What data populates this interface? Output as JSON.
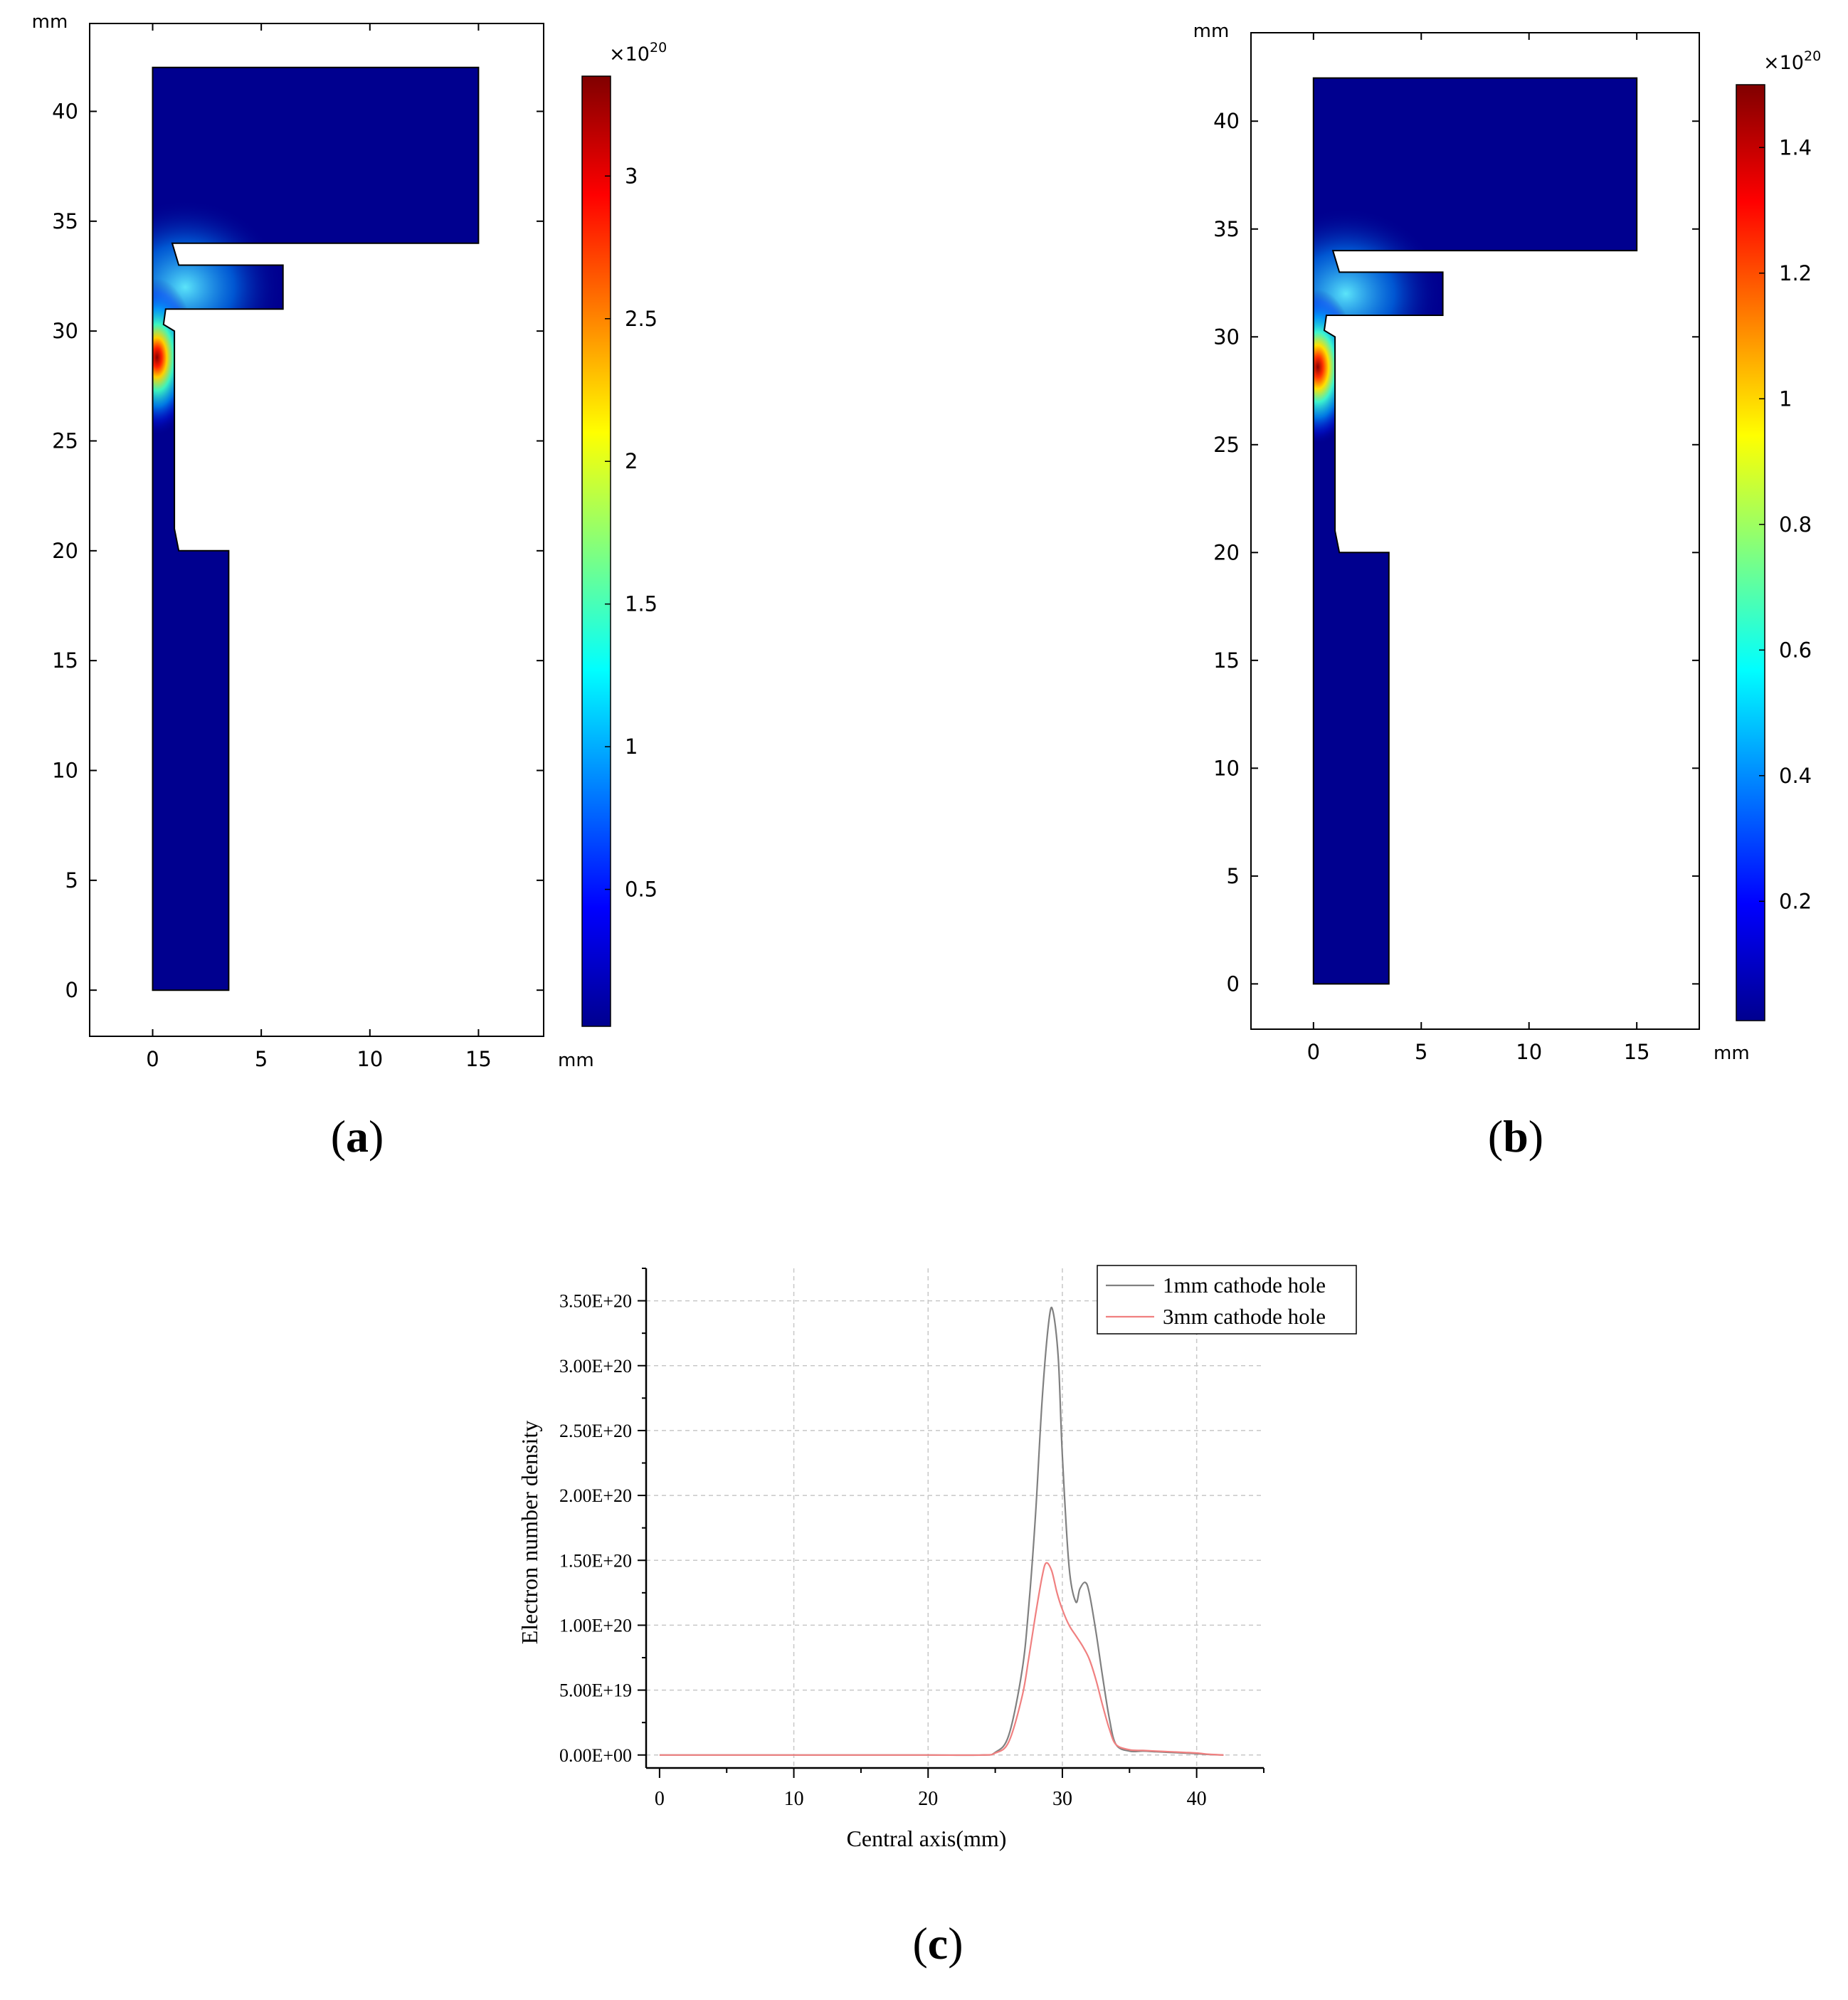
{
  "figure": {
    "panel_labels": [
      "(a)",
      "(b)",
      "(c)"
    ]
  },
  "chart_data": [
    {
      "type": "heatmap",
      "panel": "(a)",
      "x_unit": "mm",
      "y_unit": "mm",
      "xlim": [
        -2.9,
        18
      ],
      "ylim": [
        -2.1,
        44
      ],
      "x_ticks": [
        0,
        5,
        10,
        15
      ],
      "y_ticks": [
        0,
        5,
        10,
        15,
        20,
        25,
        30,
        35,
        40
      ],
      "colorbar": {
        "exponent_label": "×10",
        "exponent": "20",
        "range": [
          0.02,
          3.35
        ],
        "ticks": [
          0.5,
          1,
          1.5,
          2,
          2.5,
          3
        ],
        "tick_labels": [
          "0.5",
          "1",
          "1.5",
          "2",
          "2.5",
          "3"
        ],
        "colormap": "jet"
      },
      "hotspot": {
        "x": 0.2,
        "y": 28.8,
        "peak": 3.4
      }
    },
    {
      "type": "heatmap",
      "panel": "(b)",
      "x_unit": "mm",
      "y_unit": "mm",
      "xlim": [
        -2.9,
        17.9
      ],
      "ylim": [
        -2.1,
        44.1
      ],
      "x_ticks": [
        0,
        5,
        10,
        15
      ],
      "y_ticks": [
        0,
        5,
        10,
        15,
        20,
        25,
        30,
        35,
        40
      ],
      "colorbar": {
        "exponent_label": "×10",
        "exponent": "20",
        "range": [
          0.01,
          1.5
        ],
        "ticks": [
          0.2,
          0.4,
          0.6,
          0.8,
          1,
          1.2,
          1.4
        ],
        "tick_labels": [
          "0.2",
          "0.4",
          "0.6",
          "0.8",
          "1",
          "1.2",
          "1.4"
        ],
        "colormap": "jet"
      },
      "hotspot": {
        "x": 0.2,
        "y": 28.6,
        "peak": 1.5
      }
    },
    {
      "type": "line",
      "panel": "(c)",
      "xlabel": "Central axis(mm)",
      "ylabel": "Electron number density",
      "xlim": [
        -1,
        45
      ],
      "ylim": [
        -1e+19,
        3.75e+20
      ],
      "x_ticks": [
        0,
        10,
        20,
        30,
        40
      ],
      "y_ticks": [
        0,
        5e+19,
        1e+20,
        1.5e+20,
        2e+20,
        2.5e+20,
        3e+20,
        3.5e+20
      ],
      "y_tick_labels": [
        "0.00E+00",
        "5.00E+19",
        "1.00E+20",
        "1.50E+20",
        "2.00E+20",
        "2.50E+20",
        "3.00E+20",
        "3.50E+20"
      ],
      "grid": true,
      "legend_position": "top-right",
      "series": [
        {
          "name": "1mm cathode hole",
          "color": "#808080",
          "x": [
            0,
            10,
            20,
            24,
            25,
            26,
            27,
            27.5,
            28,
            28.5,
            29,
            29.3,
            29.7,
            30,
            30.5,
            31,
            31.3,
            31.7,
            32,
            32.5,
            33,
            33.5,
            34,
            35,
            36,
            37,
            38,
            39,
            40,
            41,
            42
          ],
          "y": [
            0,
            0,
            0,
            0,
            2e+18,
            1.5e+19,
            6.5e+19,
            1.15e+20,
            1.85e+20,
            2.75e+20,
            3.35e+20,
            3.42e+20,
            3.05e+20,
            2.3e+20,
            1.45e+20,
            1.18e+20,
            1.28e+20,
            1.33e+20,
            1.25e+20,
            9.5e+19,
            6e+19,
            2.8e+19,
            8e+18,
            3e+18,
            3e+18,
            2.5e+18,
            2e+18,
            1.5e+18,
            1e+18,
            3e+17,
            0
          ]
        },
        {
          "name": "3mm cathode hole",
          "color": "#f08080",
          "x": [
            0,
            10,
            20,
            24,
            25,
            26,
            27,
            27.5,
            28,
            28.5,
            28.8,
            29.2,
            29.6,
            30,
            30.5,
            31,
            31.5,
            32,
            32.5,
            33,
            33.5,
            34,
            35,
            36,
            37,
            38,
            39,
            40,
            41,
            42
          ],
          "y": [
            0,
            0,
            0,
            0,
            1.5e+18,
            1e+19,
            4.5e+19,
            7.5e+19,
            1.08e+20,
            1.38e+20,
            1.48e+20,
            1.42e+20,
            1.25e+20,
            1.12e+20,
            1e+20,
            9.2e+19,
            8.4e+19,
            7.4e+19,
            5.8e+19,
            3.8e+19,
            2e+19,
            8e+18,
            4e+18,
            3.5e+18,
            3e+18,
            2.5e+18,
            2e+18,
            1.5e+18,
            5e+17,
            0
          ]
        }
      ]
    }
  ]
}
